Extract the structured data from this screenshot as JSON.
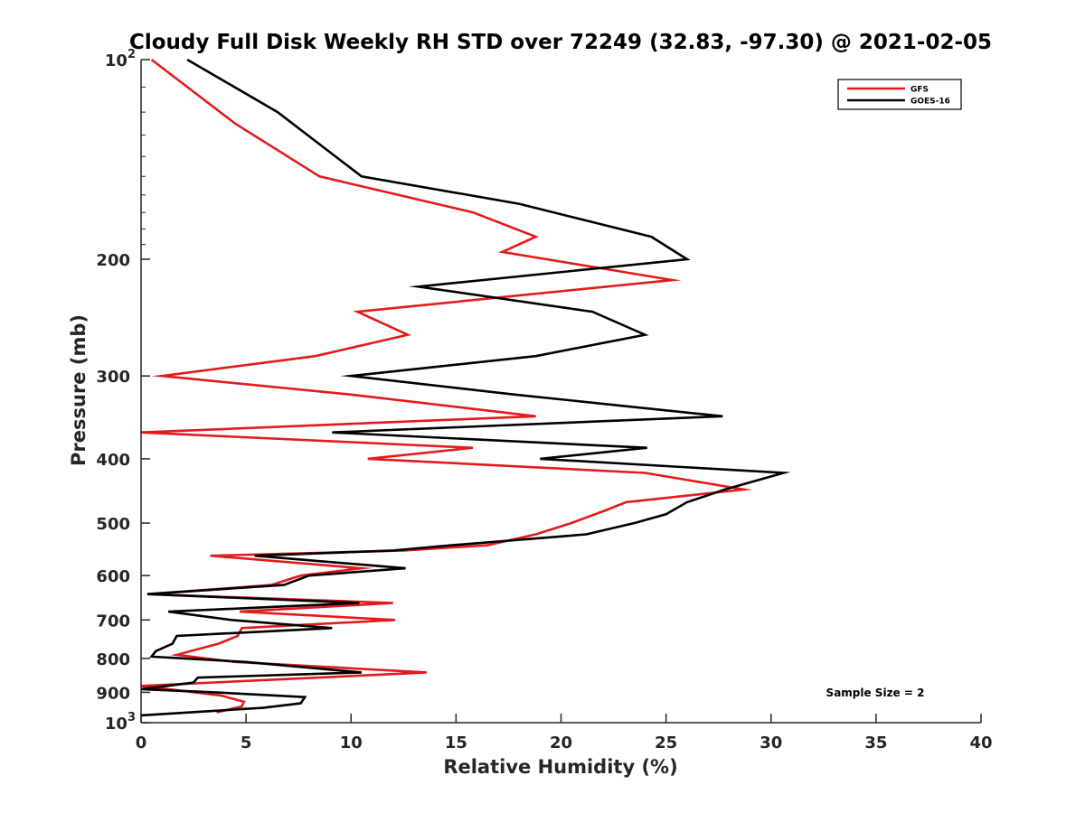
{
  "chart_data": {
    "type": "line",
    "title": "Cloudy Full Disk Weekly RH STD over 72249 (32.83, -97.30) @ 2021-02-05",
    "xlabel": "Relative Humidity (%)",
    "ylabel": "Pressure (mb)",
    "xlim": [
      0,
      40
    ],
    "ylim": [
      100,
      1000
    ],
    "y_scale": "log",
    "y_reversed": true,
    "x_ticks": [
      "0",
      "5",
      "10",
      "15",
      "20",
      "25",
      "30",
      "35",
      "40"
    ],
    "y_ticks": [
      {
        "value": 100,
        "base": "10",
        "exp": "2"
      },
      {
        "value": 200,
        "label": "200"
      },
      {
        "value": 300,
        "label": "300"
      },
      {
        "value": 400,
        "label": "400"
      },
      {
        "value": 500,
        "label": "500"
      },
      {
        "value": 600,
        "label": "600"
      },
      {
        "value": 700,
        "label": "700"
      },
      {
        "value": 800,
        "label": "800"
      },
      {
        "value": 900,
        "label": "900"
      },
      {
        "value": 1000,
        "base": "10",
        "exp": "3"
      }
    ],
    "grid": false,
    "legend_position": "top-right",
    "annotation": "Sample Size = 2",
    "series": [
      {
        "name": "GFS",
        "color": "#e41a1c",
        "points": [
          [
            0.5,
            100
          ],
          [
            4.5,
            125
          ],
          [
            8.5,
            150
          ],
          [
            15.8,
            170
          ],
          [
            18.8,
            185
          ],
          [
            17.2,
            195
          ],
          [
            25.3,
            215
          ],
          [
            10.3,
            240
          ],
          [
            12.7,
            260
          ],
          [
            8.3,
            280
          ],
          [
            1.0,
            300
          ],
          [
            10.0,
            320
          ],
          [
            18.8,
            345
          ],
          [
            0.0,
            365
          ],
          [
            15.8,
            385
          ],
          [
            10.8,
            400
          ],
          [
            24.0,
            420
          ],
          [
            28.7,
            445
          ],
          [
            23.1,
            465
          ],
          [
            22.0,
            480
          ],
          [
            20.5,
            500
          ],
          [
            18.8,
            520
          ],
          [
            16.5,
            540
          ],
          [
            12.5,
            550
          ],
          [
            3.3,
            560
          ],
          [
            10.5,
            585
          ],
          [
            7.6,
            600
          ],
          [
            6.2,
            620
          ],
          [
            0.3,
            640
          ],
          [
            12.0,
            660
          ],
          [
            4.7,
            680
          ],
          [
            12.1,
            700
          ],
          [
            4.8,
            720
          ],
          [
            4.6,
            740
          ],
          [
            3.7,
            760
          ],
          [
            1.7,
            790
          ],
          [
            4.5,
            810
          ],
          [
            13.6,
            840
          ],
          [
            0.0,
            880
          ],
          [
            3.8,
            910
          ],
          [
            4.9,
            930
          ],
          [
            4.8,
            945
          ],
          [
            3.6,
            965
          ]
        ]
      },
      {
        "name": "GOES-16",
        "color": "#000000",
        "points": [
          [
            2.2,
            100
          ],
          [
            6.5,
            120
          ],
          [
            10.5,
            150
          ],
          [
            18.0,
            165
          ],
          [
            24.3,
            185
          ],
          [
            26.0,
            200
          ],
          [
            13.2,
            220
          ],
          [
            21.5,
            240
          ],
          [
            24.0,
            260
          ],
          [
            18.8,
            280
          ],
          [
            10.0,
            300
          ],
          [
            17.8,
            320
          ],
          [
            27.7,
            345
          ],
          [
            9.1,
            365
          ],
          [
            24.1,
            385
          ],
          [
            19.0,
            400
          ],
          [
            30.6,
            420
          ],
          [
            27.8,
            445
          ],
          [
            26.0,
            465
          ],
          [
            25.0,
            485
          ],
          [
            23.5,
            500
          ],
          [
            21.2,
            520
          ],
          [
            14.8,
            540
          ],
          [
            12.0,
            550
          ],
          [
            5.4,
            560
          ],
          [
            12.6,
            585
          ],
          [
            8.0,
            600
          ],
          [
            6.8,
            620
          ],
          [
            0.3,
            640
          ],
          [
            10.4,
            660
          ],
          [
            1.3,
            680
          ],
          [
            4.3,
            700
          ],
          [
            9.1,
            720
          ],
          [
            1.7,
            740
          ],
          [
            1.5,
            760
          ],
          [
            0.7,
            780
          ],
          [
            0.5,
            795
          ],
          [
            5.0,
            810
          ],
          [
            10.5,
            840
          ],
          [
            2.7,
            855
          ],
          [
            2.5,
            870
          ],
          [
            0.0,
            890
          ],
          [
            3.5,
            900
          ],
          [
            7.8,
            915
          ],
          [
            7.6,
            935
          ],
          [
            5.8,
            950
          ],
          [
            0.0,
            975
          ]
        ]
      }
    ]
  }
}
